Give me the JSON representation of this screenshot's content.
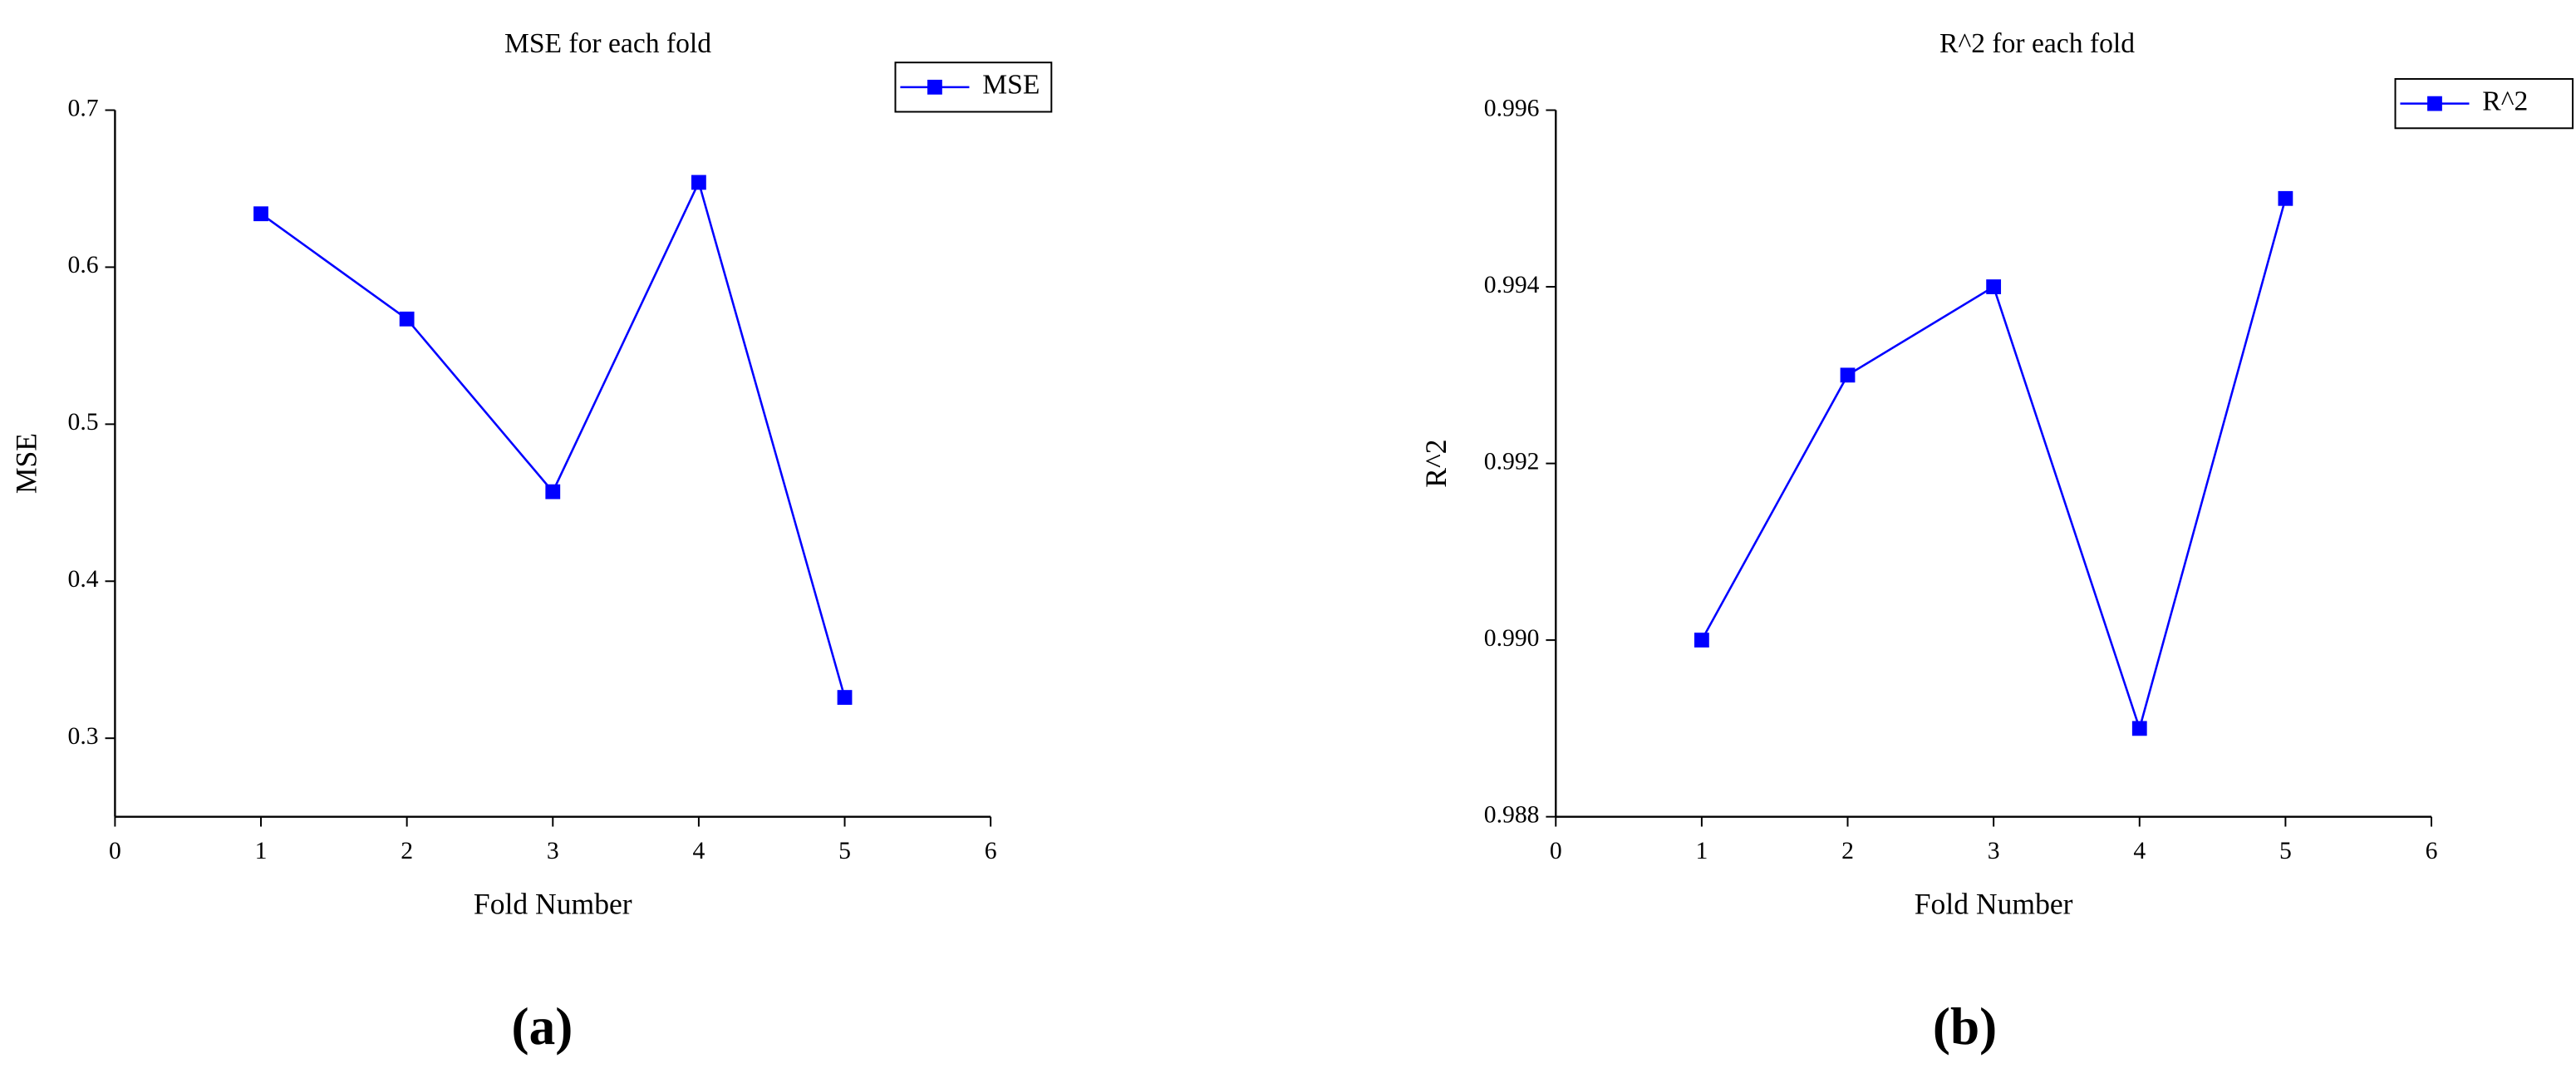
{
  "chart_data": [
    {
      "type": "line",
      "title": "MSE for each fold",
      "xlabel": "Fold Number",
      "ylabel": "MSE",
      "panel_label": "(a)",
      "x": [
        1,
        2,
        3,
        4,
        5
      ],
      "series": [
        {
          "name": "MSE",
          "color": "#0000ff",
          "values": [
            0.634,
            0.567,
            0.457,
            0.654,
            0.326
          ]
        }
      ],
      "xlim": [
        0,
        6
      ],
      "xticks": [
        0,
        1,
        2,
        3,
        4,
        5,
        6
      ],
      "ylim": [
        0.25,
        0.7
      ],
      "yticks": [
        0.3,
        0.4,
        0.5,
        0.6,
        0.7
      ],
      "legend": "upper right"
    },
    {
      "type": "line",
      "title": "R^2 for each fold",
      "xlabel": "Fold Number",
      "ylabel": "R^2",
      "panel_label": "(b)",
      "x": [
        1,
        2,
        3,
        4,
        5
      ],
      "series": [
        {
          "name": "R^2",
          "color": "#0000ff",
          "values": [
            0.99,
            0.993,
            0.994,
            0.989,
            0.995
          ]
        }
      ],
      "xlim": [
        0,
        6
      ],
      "xticks": [
        0,
        1,
        2,
        3,
        4,
        5,
        6
      ],
      "ylim": [
        0.988,
        0.996
      ],
      "yticks": [
        0.988,
        {
          "value": 0.99,
          "label": "0.990"
        },
        0.992,
        0.994,
        0.996
      ],
      "legend": "upper right"
    }
  ]
}
